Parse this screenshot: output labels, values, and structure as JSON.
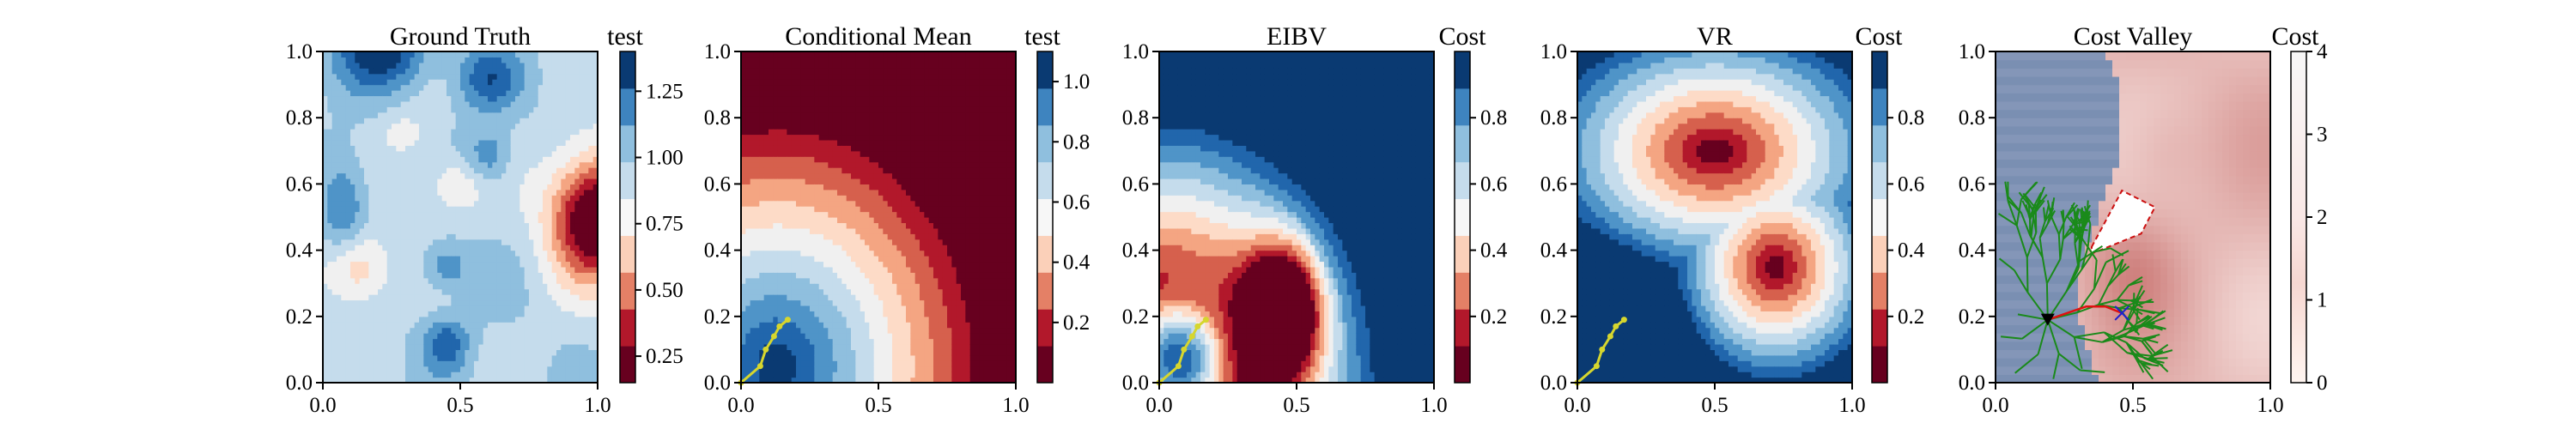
{
  "chart_data": [
    {
      "type": "heatmap",
      "title": "Ground Truth",
      "colorbar_label": "test",
      "xlim": [
        0,
        1
      ],
      "ylim": [
        0,
        1
      ],
      "xticks": [
        "0.0",
        "0.5",
        "1.0"
      ],
      "yticks": [
        "0.0",
        "0.2",
        "0.4",
        "0.6",
        "0.8",
        "1.0"
      ],
      "colorbar_range": [
        0.15,
        1.4
      ],
      "colorbar_ticks": [
        "0.25",
        "0.50",
        "0.75",
        "1.00",
        "1.25"
      ],
      "colorbar_tick_values": [
        0.25,
        0.5,
        0.75,
        1.0,
        1.25
      ],
      "colormap": "RdBu",
      "field_description": "random smooth field, low-value (red) blob centered near (0.97, 0.5)"
    },
    {
      "type": "heatmap",
      "title": "Conditional Mean",
      "colorbar_label": "test",
      "xlim": [
        0,
        1
      ],
      "ylim": [
        0,
        1
      ],
      "xticks": [
        "0.0",
        "0.5",
        "1.0"
      ],
      "yticks": [
        "0.0",
        "0.2",
        "0.4",
        "0.6",
        "0.8",
        "1.0"
      ],
      "colorbar_range": [
        0.0,
        1.1
      ],
      "colorbar_ticks": [
        "0.2",
        "0.4",
        "0.6",
        "0.8",
        "1.0"
      ],
      "colorbar_tick_values": [
        0.2,
        0.4,
        0.6,
        0.8,
        1.0
      ],
      "colormap": "RdBu",
      "path": {
        "color": "#d6d62e",
        "x": [
          0.0,
          0.07,
          0.09,
          0.12,
          0.14,
          0.17
        ],
        "y": [
          0.0,
          0.05,
          0.1,
          0.14,
          0.17,
          0.19
        ]
      }
    },
    {
      "type": "heatmap",
      "title": "EIBV",
      "colorbar_label": "Cost",
      "xlim": [
        0,
        1
      ],
      "ylim": [
        0,
        1
      ],
      "xticks": [
        "0.0",
        "0.5",
        "1.0"
      ],
      "yticks": [
        "0.0",
        "0.2",
        "0.4",
        "0.6",
        "0.8",
        "1.0"
      ],
      "colorbar_range": [
        0.0,
        1.0
      ],
      "colorbar_ticks": [
        "0.2",
        "0.4",
        "0.6",
        "0.8"
      ],
      "colorbar_tick_values": [
        0.2,
        0.4,
        0.6,
        0.8
      ],
      "colormap": "RdBu",
      "path": {
        "color": "#d6d62e",
        "x": [
          0.0,
          0.07,
          0.09,
          0.12,
          0.14,
          0.17
        ],
        "y": [
          0.0,
          0.05,
          0.1,
          0.14,
          0.17,
          0.19
        ]
      }
    },
    {
      "type": "heatmap",
      "title": "VR",
      "colorbar_label": "Cost",
      "xlim": [
        0,
        1
      ],
      "ylim": [
        0,
        1
      ],
      "xticks": [
        "0.0",
        "0.5",
        "1.0"
      ],
      "yticks": [
        "0.0",
        "0.2",
        "0.4",
        "0.6",
        "0.8",
        "1.0"
      ],
      "colorbar_range": [
        0.0,
        1.0
      ],
      "colorbar_ticks": [
        "0.2",
        "0.4",
        "0.6",
        "0.8"
      ],
      "colorbar_tick_values": [
        0.2,
        0.4,
        0.6,
        0.8
      ],
      "colormap": "RdBu",
      "path": {
        "color": "#d6d62e",
        "x": [
          0.0,
          0.07,
          0.09,
          0.12,
          0.14,
          0.17
        ],
        "y": [
          0.0,
          0.05,
          0.1,
          0.14,
          0.17,
          0.19
        ]
      }
    },
    {
      "type": "heatmap",
      "title": "Cost Valley",
      "colorbar_label": "Cost",
      "xlim": [
        0,
        1
      ],
      "ylim": [
        0,
        1
      ],
      "xticks": [
        "0.0",
        "0.5",
        "1.0"
      ],
      "yticks": [
        "0.0",
        "0.2",
        "0.4",
        "0.6",
        "0.8",
        "1.0"
      ],
      "colorbar_range": [
        0,
        4
      ],
      "colorbar_ticks": [
        "0",
        "1",
        "2",
        "3",
        "4"
      ],
      "colorbar_tick_values": [
        0,
        1,
        2,
        3,
        4
      ],
      "colormap": "Reds",
      "start_point": {
        "x": 0.19,
        "y": 0.19,
        "marker": "triangle-down",
        "color": "#000000"
      },
      "target_point": {
        "x": 0.46,
        "y": 0.21,
        "marker": "x",
        "color": "#1f1fd0"
      },
      "planned_path": {
        "color": "#e01010",
        "x": [
          0.19,
          0.26,
          0.33,
          0.4,
          0.46
        ],
        "y": [
          0.19,
          0.21,
          0.23,
          0.23,
          0.21
        ]
      },
      "obstacle": {
        "color": "#cc1111",
        "x": [
          0.35,
          0.46,
          0.58,
          0.53,
          0.35
        ],
        "y": [
          0.41,
          0.58,
          0.53,
          0.45,
          0.39
        ]
      },
      "tree_color": "#1a8a1a"
    }
  ]
}
